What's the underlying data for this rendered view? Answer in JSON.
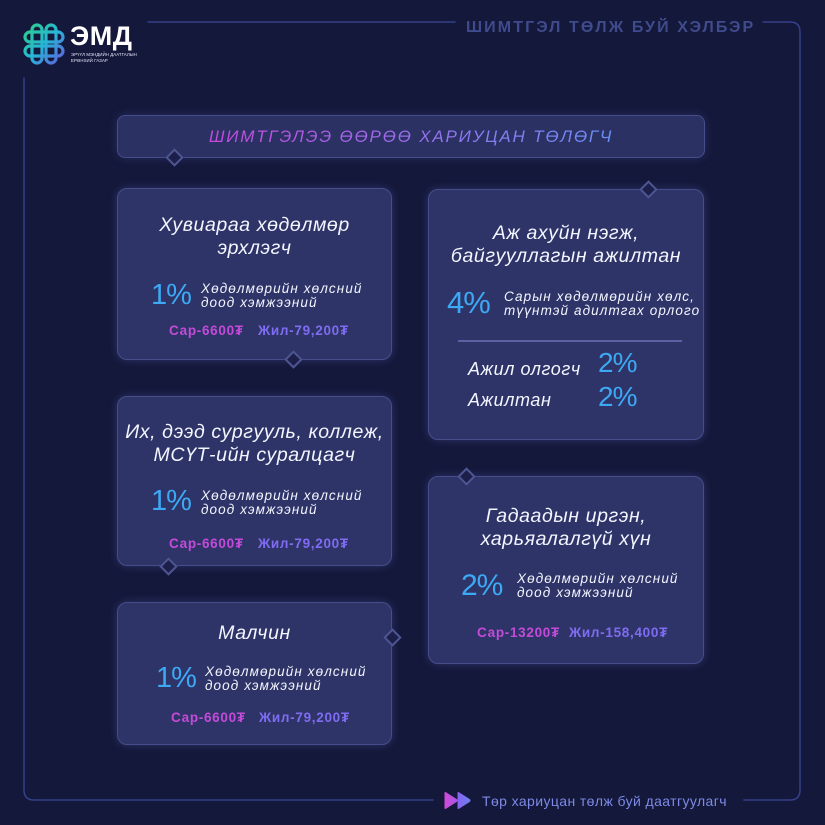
{
  "logo": {
    "icon": "ulzii-knot-logo-icon",
    "abbr": "ЭМД",
    "org_line1": "ЭРҮҮЛ МЭНДИЙН ДААТГАЛЫН",
    "org_line2": "ЕРӨНХИЙ ГАЗАР"
  },
  "header": {
    "title": "ШИМТГЭЛ ТӨЛЖ БУЙ ХЭЛБЭР"
  },
  "section": {
    "title": "ШИМТГЭЛЭЭ ӨӨРӨӨ ХАРИУЦАН ТӨЛӨГЧ"
  },
  "cards": [
    {
      "title": "Хувиараа хөдөлмөр\nэрхлэгч",
      "rate": "1%",
      "basis": "Хөдөлмөрийн хөлсний\nдоод хэмжээний",
      "monthly": "Сар-6600₮",
      "yearly": "Жил-79,200₮"
    },
    {
      "title": "Их, дээд сургууль, коллеж,\nМСҮТ-ийн суралцагч",
      "rate": "1%",
      "basis": "Хөдөлмөрийн хөлсний\nдоод хэмжээний",
      "monthly": "Сар-6600₮",
      "yearly": "Жил-79,200₮"
    },
    {
      "title": "Малчин",
      "rate": "1%",
      "basis": "Хөдөлмөрийн хөлсний\nдоод хэмжээний",
      "monthly": "Сар-6600₮",
      "yearly": "Жил-79,200₮"
    },
    {
      "title": "Аж ахуйн нэгж,\nбайгууллагын ажилтан",
      "rate": "4%",
      "basis": "Сарын хөдөлмөрийн хөлс,\nтүүнтэй адилтгах орлого",
      "split": [
        {
          "label": "Ажил олгогч",
          "rate": "2%"
        },
        {
          "label": "Ажилтан",
          "rate": "2%"
        }
      ]
    },
    {
      "title": "Гадаадын иргэн,\nхарьяалалгүй хүн",
      "rate": "2%",
      "basis": "Хөдөлмөрийн хөлсний\nдоод хэмжээний",
      "monthly": "Сар-13200₮",
      "yearly": "Жил-158,400₮"
    }
  ],
  "footer": {
    "icon": "double-play-icon",
    "text": "Төр хариуцан төлж буй даатгуулагч"
  },
  "icons": {
    "connector": "diamond-connector-icon"
  },
  "colors": {
    "background": "#14183a",
    "section_bar": "#2b3163",
    "card": "#2e3467",
    "card_border": "#454d8a",
    "frame_line": "#35408a",
    "header_text": "#3f4b8c",
    "title_gradient_start": "#c549df",
    "title_gradient_end": "#6a8ff6",
    "rate": "#3da8f3",
    "monthly": "#c44bda",
    "yearly": "#7f6cf2",
    "divider": "#5a62a3",
    "connector_fill": "#1b1f49",
    "connector_border": "#4d5692",
    "footer_text": "#7d8ae6",
    "logo_green": "#2ed47a",
    "logo_teal": "#27b6d6",
    "logo_purple": "#6b4fe0"
  }
}
